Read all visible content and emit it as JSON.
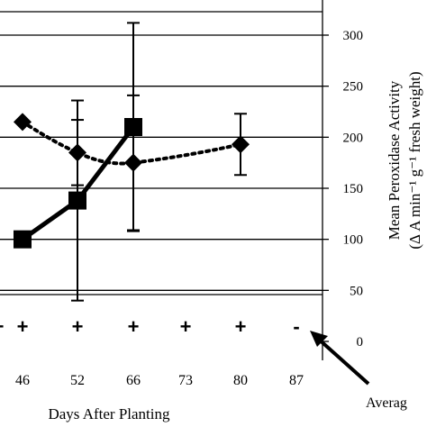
{
  "chart_data": {
    "type": "line",
    "xlabel": "Days After Planting",
    "ylabel": "Mean Peroxidase Activity",
    "ylabel_second_line": "(Δ A min⁻¹ g⁻¹ fresh weight)",
    "categories": [
      "46",
      "52",
      "66",
      "73",
      "80",
      "87"
    ],
    "ylim": [
      0,
      300
    ],
    "y_ticks": [
      "0",
      "50",
      "100",
      "150",
      "200",
      "250",
      "300"
    ],
    "grid": true,
    "series": [
      {
        "style": "solid",
        "marker": "square",
        "color": "#000000",
        "points": [
          {
            "x": "46",
            "y": 100,
            "err": null
          },
          {
            "x": "52",
            "y": 138,
            "err": 98
          },
          {
            "x": "66",
            "y": 210,
            "err": 102
          }
        ]
      },
      {
        "style": "dotted",
        "marker": "diamond",
        "color": "#000000",
        "points": [
          {
            "x": "46",
            "y": 215,
            "err": null
          },
          {
            "x": "52",
            "y": 185,
            "err": 32
          },
          {
            "x": "66",
            "y": 175,
            "err": 66
          },
          {
            "x": "73",
            "y": 183,
            "err": null
          },
          {
            "x": "80",
            "y": 193,
            "err": 30
          }
        ]
      }
    ],
    "presence_row": [
      {
        "x": "40",
        "mark": "+"
      },
      {
        "x": "46",
        "mark": "+"
      },
      {
        "x": "52",
        "mark": "+"
      },
      {
        "x": "66",
        "mark": "+"
      },
      {
        "x": "73",
        "mark": "+"
      },
      {
        "x": "80",
        "mark": "+"
      },
      {
        "x": "87",
        "mark": "-"
      }
    ],
    "annotation": "Averag"
  }
}
